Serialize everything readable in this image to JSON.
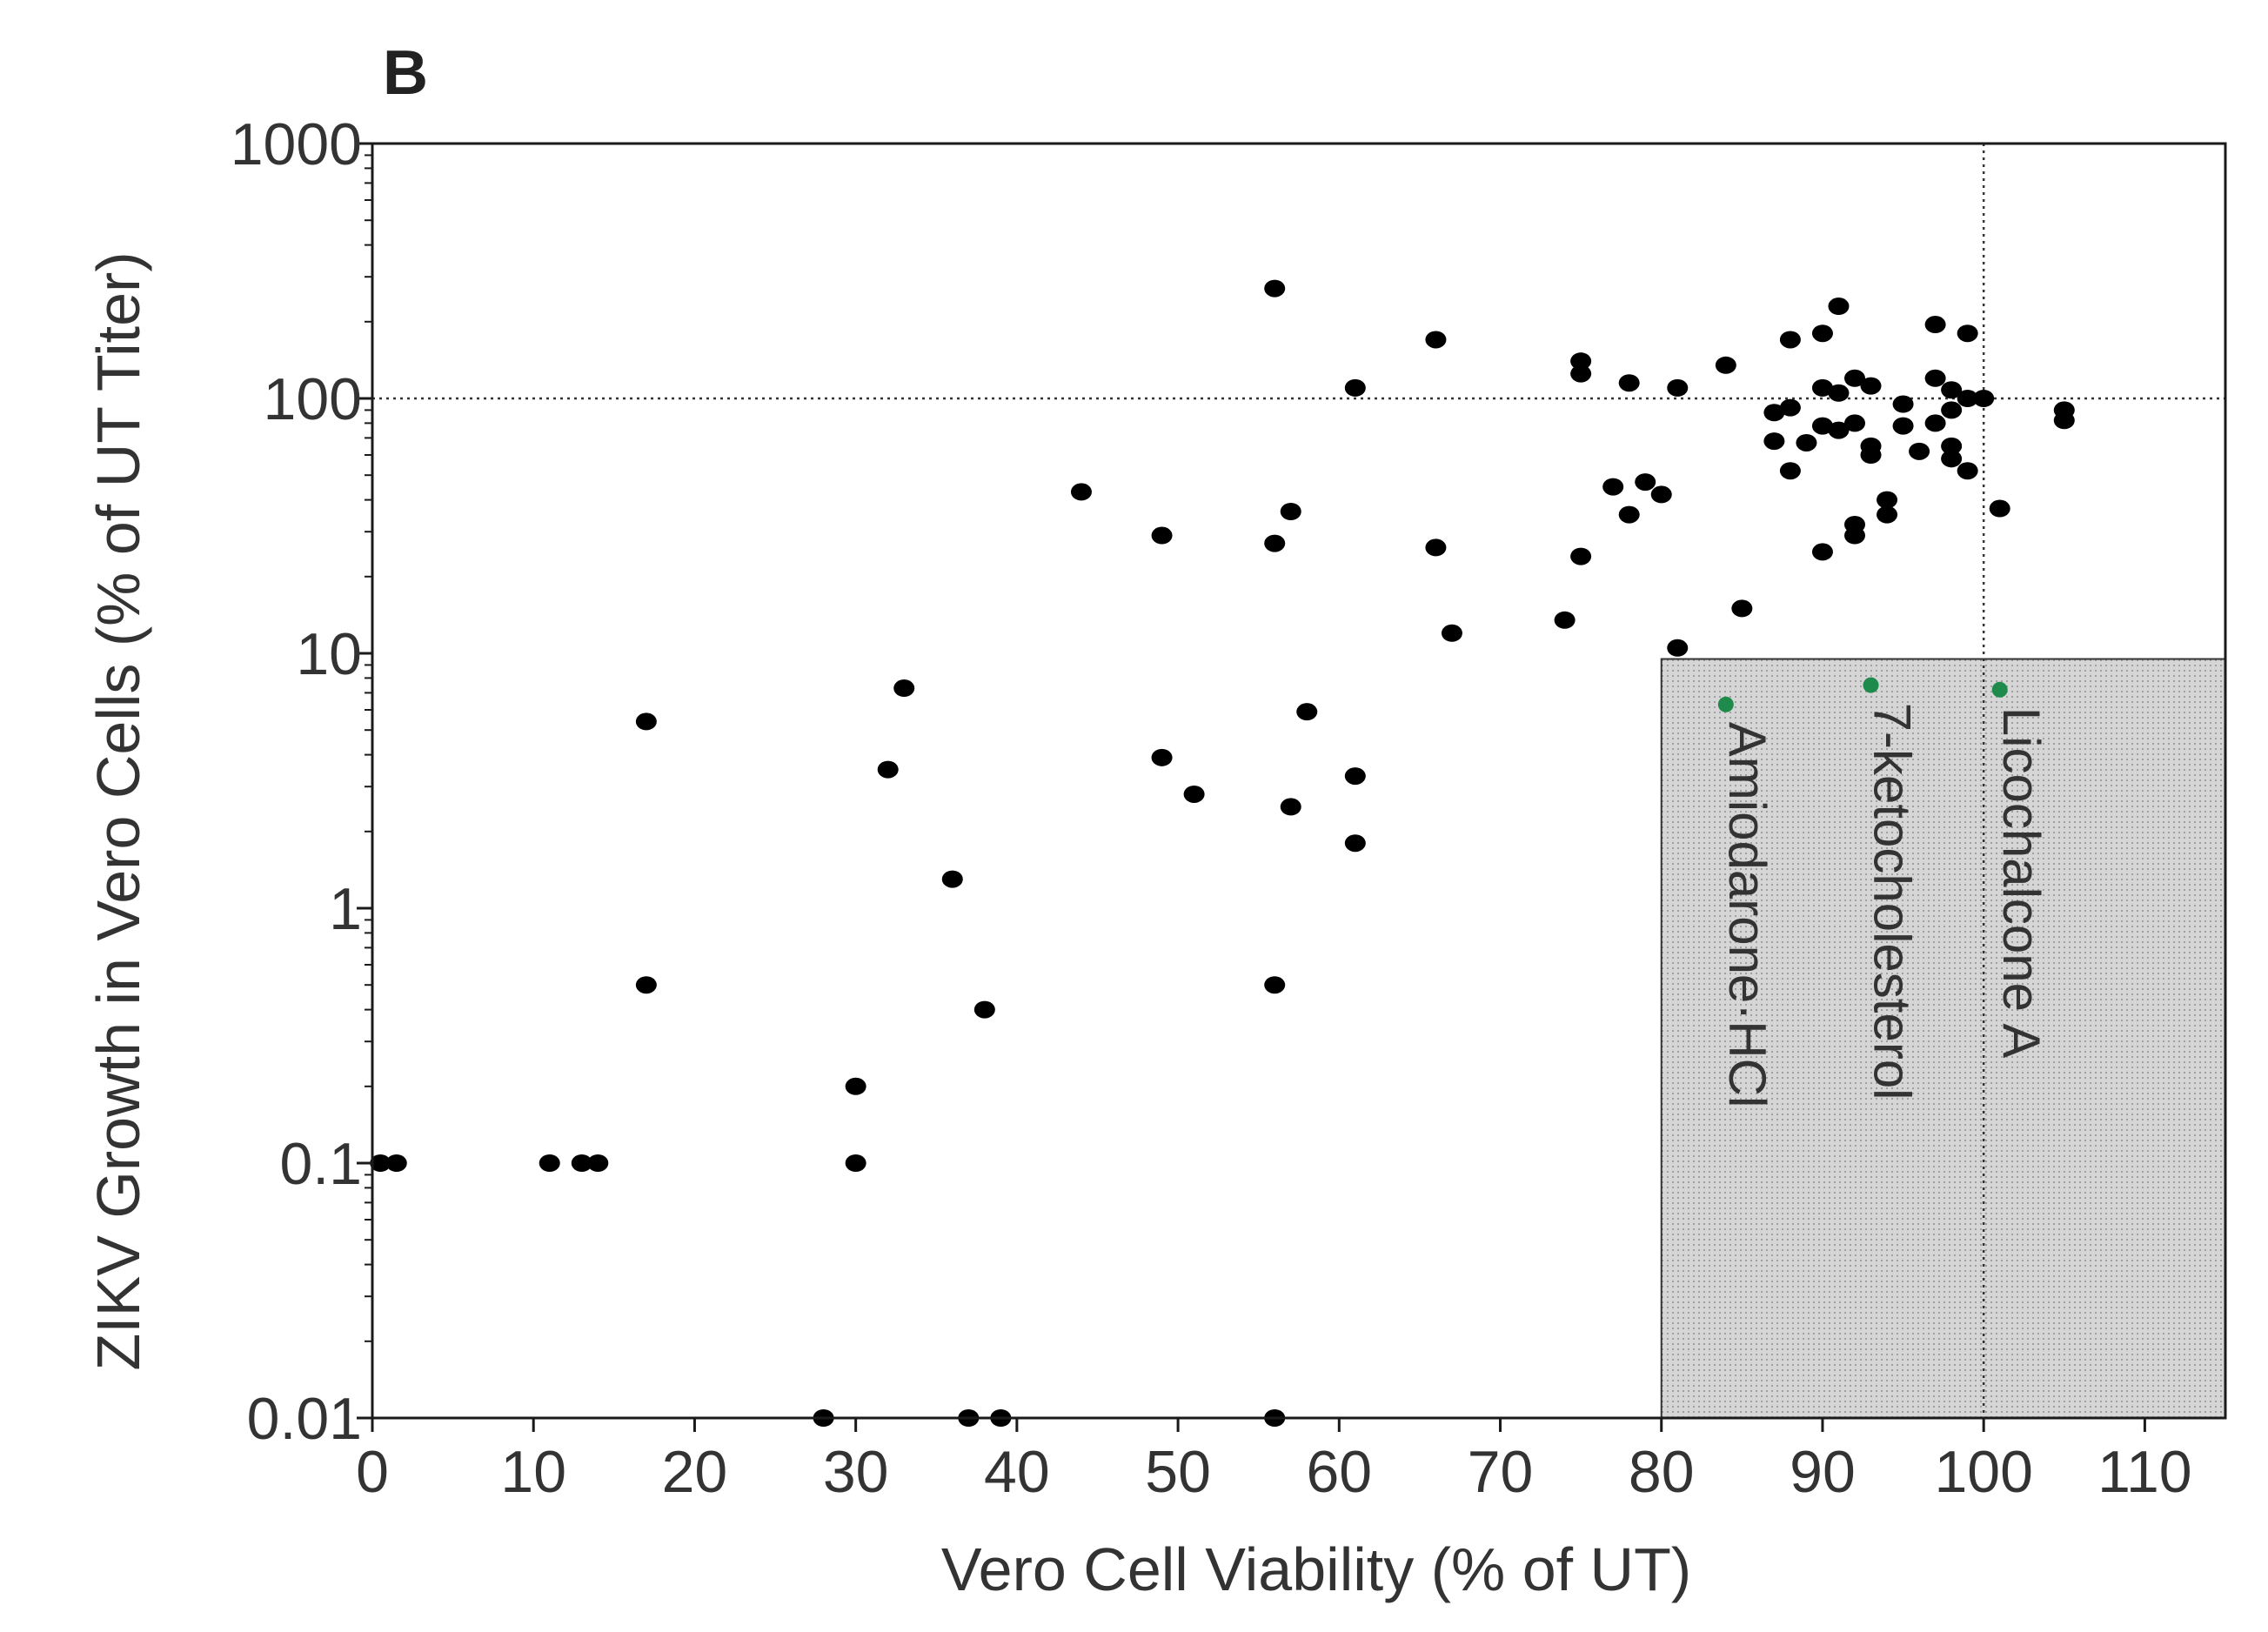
{
  "chart_data": {
    "type": "scatter",
    "panel_label": "B",
    "xlabel": "Vero Cell Viability (% of UT)",
    "ylabel": "ZIKV Growth in Vero Cells (% of UT Titer)",
    "xlim": [
      0,
      115
    ],
    "ylim": [
      0.01,
      1000
    ],
    "yscale": "log",
    "x_ticks": [
      0,
      10,
      20,
      30,
      40,
      50,
      60,
      70,
      80,
      90,
      100,
      110
    ],
    "x_tick_labels": [
      "0",
      "10",
      "20",
      "30",
      "40",
      "50",
      "60",
      "70",
      "80",
      "90",
      "100",
      "110"
    ],
    "y_ticks": [
      0.01,
      0.1,
      1,
      10,
      100,
      1000
    ],
    "y_tick_labels": [
      "0.01",
      "0.1",
      "1",
      "10",
      "100",
      "1000"
    ],
    "reference_lines": {
      "x": 100,
      "y": 100
    },
    "highlight_region": {
      "x": [
        80,
        115
      ],
      "y": [
        0.01,
        9.5
      ]
    },
    "grid": false,
    "point_color": "#000000",
    "highlight_color": "#1e8a4c",
    "region_color": "#cfcfcf",
    "points": [
      {
        "x": 0.5,
        "y": 0.1
      },
      {
        "x": 1.5,
        "y": 0.1
      },
      {
        "x": 11,
        "y": 0.1
      },
      {
        "x": 13,
        "y": 0.1
      },
      {
        "x": 14,
        "y": 0.1
      },
      {
        "x": 17,
        "y": 5.4
      },
      {
        "x": 17,
        "y": 0.5
      },
      {
        "x": 28,
        "y": 0.01
      },
      {
        "x": 30,
        "y": 0.2
      },
      {
        "x": 30,
        "y": 0.1
      },
      {
        "x": 32,
        "y": 3.5
      },
      {
        "x": 33,
        "y": 7.3
      },
      {
        "x": 36,
        "y": 1.3
      },
      {
        "x": 37,
        "y": 0.01
      },
      {
        "x": 38,
        "y": 0.4
      },
      {
        "x": 39,
        "y": 0.01
      },
      {
        "x": 44,
        "y": 43
      },
      {
        "x": 49,
        "y": 29
      },
      {
        "x": 49,
        "y": 3.9
      },
      {
        "x": 51,
        "y": 2.8
      },
      {
        "x": 56,
        "y": 270
      },
      {
        "x": 56,
        "y": 27
      },
      {
        "x": 56,
        "y": 0.5
      },
      {
        "x": 56,
        "y": 0.01
      },
      {
        "x": 57,
        "y": 36
      },
      {
        "x": 57,
        "y": 2.5
      },
      {
        "x": 58,
        "y": 5.9
      },
      {
        "x": 61,
        "y": 110
      },
      {
        "x": 61,
        "y": 3.3
      },
      {
        "x": 61,
        "y": 1.8
      },
      {
        "x": 66,
        "y": 170
      },
      {
        "x": 66,
        "y": 26
      },
      {
        "x": 67,
        "y": 12
      },
      {
        "x": 74,
        "y": 13.5
      },
      {
        "x": 75,
        "y": 140
      },
      {
        "x": 75,
        "y": 125
      },
      {
        "x": 75,
        "y": 24
      },
      {
        "x": 77,
        "y": 45
      },
      {
        "x": 78,
        "y": 115
      },
      {
        "x": 78,
        "y": 35
      },
      {
        "x": 79,
        "y": 47
      },
      {
        "x": 80,
        "y": 42
      },
      {
        "x": 81,
        "y": 110
      },
      {
        "x": 81,
        "y": 10.5
      },
      {
        "x": 84,
        "y": 135
      },
      {
        "x": 85,
        "y": 15
      },
      {
        "x": 87,
        "y": 88
      },
      {
        "x": 87,
        "y": 68
      },
      {
        "x": 88,
        "y": 170
      },
      {
        "x": 88,
        "y": 92
      },
      {
        "x": 88,
        "y": 52
      },
      {
        "x": 89,
        "y": 67
      },
      {
        "x": 90,
        "y": 180
      },
      {
        "x": 90,
        "y": 110
      },
      {
        "x": 90,
        "y": 78
      },
      {
        "x": 90,
        "y": 25
      },
      {
        "x": 91,
        "y": 230
      },
      {
        "x": 91,
        "y": 105
      },
      {
        "x": 91,
        "y": 75
      },
      {
        "x": 92,
        "y": 120
      },
      {
        "x": 92,
        "y": 80
      },
      {
        "x": 92,
        "y": 32
      },
      {
        "x": 92,
        "y": 29
      },
      {
        "x": 93,
        "y": 112
      },
      {
        "x": 93,
        "y": 65
      },
      {
        "x": 93,
        "y": 60
      },
      {
        "x": 94,
        "y": 40
      },
      {
        "x": 94,
        "y": 35
      },
      {
        "x": 95,
        "y": 95
      },
      {
        "x": 95,
        "y": 78
      },
      {
        "x": 96,
        "y": 62
      },
      {
        "x": 97,
        "y": 195
      },
      {
        "x": 97,
        "y": 120
      },
      {
        "x": 97,
        "y": 80
      },
      {
        "x": 98,
        "y": 108
      },
      {
        "x": 98,
        "y": 90
      },
      {
        "x": 98,
        "y": 65
      },
      {
        "x": 98,
        "y": 58
      },
      {
        "x": 99,
        "y": 180
      },
      {
        "x": 99,
        "y": 52
      },
      {
        "x": 99,
        "y": 100
      },
      {
        "x": 100,
        "y": 100
      },
      {
        "x": 101,
        "y": 37
      },
      {
        "x": 105,
        "y": 90
      },
      {
        "x": 105,
        "y": 82
      }
    ],
    "annotations": [
      {
        "label": "Amiodarone·HCl",
        "x": 84,
        "y": 6.3
      },
      {
        "label": "7-ketocholesterol",
        "x": 93,
        "y": 7.5
      },
      {
        "label": "Licochalcone A",
        "x": 101,
        "y": 7.2
      }
    ]
  }
}
